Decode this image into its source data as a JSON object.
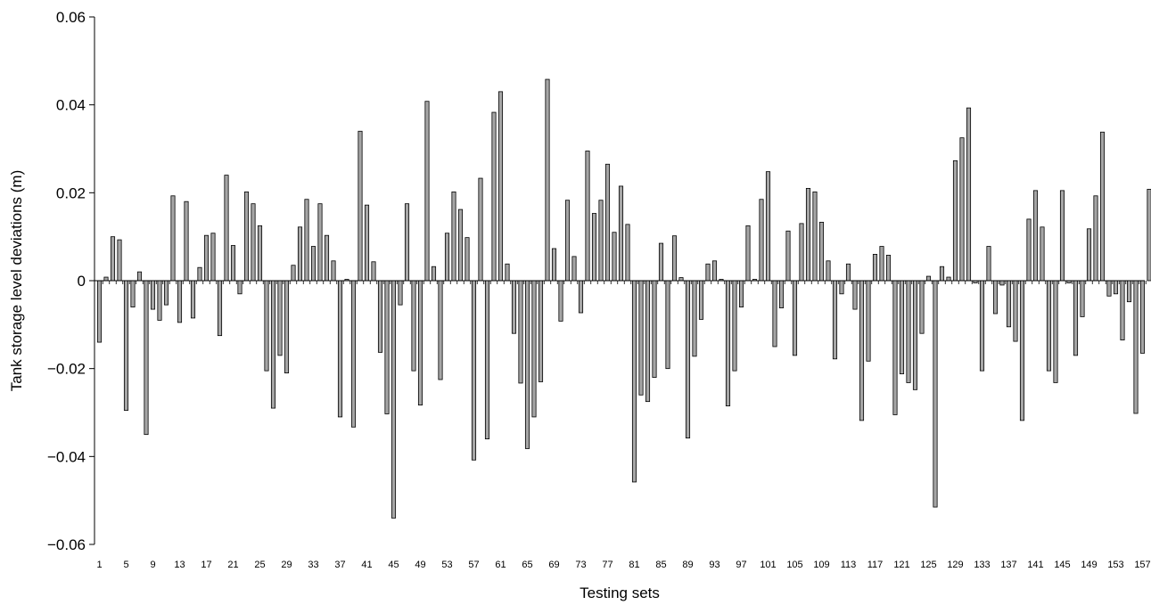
{
  "chart_data": {
    "type": "bar",
    "xlabel": "Testing sets",
    "ylabel": "Tank storage level deviations (m)",
    "ylim": [
      -0.06,
      0.06
    ],
    "y_ticks": [
      0.06,
      0.04,
      0.02,
      0,
      -0.02,
      -0.04,
      -0.06
    ],
    "y_tick_labels": [
      "0.06",
      "0.04",
      "0.02",
      "0",
      "−0.02",
      "−0.04",
      "−0.06"
    ],
    "x_tick_labels": [
      "1",
      "5",
      "9",
      "13",
      "17",
      "21",
      "25",
      "29",
      "33",
      "37",
      "41",
      "45",
      "49",
      "53",
      "57",
      "61",
      "65",
      "69",
      "73",
      "77",
      "81",
      "85",
      "89",
      "93",
      "97",
      "101",
      "105",
      "109",
      "113",
      "117",
      "121",
      "125",
      "129",
      "133",
      "137",
      "141",
      "145",
      "149",
      "153",
      "157"
    ],
    "x": [
      1,
      2,
      3,
      4,
      5,
      6,
      7,
      8,
      9,
      10,
      11,
      12,
      13,
      14,
      15,
      16,
      17,
      18,
      19,
      20,
      21,
      22,
      23,
      24,
      25,
      26,
      27,
      28,
      29,
      30,
      31,
      32,
      33,
      34,
      35,
      36,
      37,
      38,
      39,
      40,
      41,
      42,
      43,
      44,
      45,
      46,
      47,
      48,
      49,
      50,
      51,
      52,
      53,
      54,
      55,
      56,
      57,
      58,
      59,
      60,
      61,
      62,
      63,
      64,
      65,
      66,
      67,
      68,
      69,
      70,
      71,
      72,
      73,
      74,
      75,
      76,
      77,
      78,
      79,
      80,
      81,
      82,
      83,
      84,
      85,
      86,
      87,
      88,
      89,
      90,
      91,
      92,
      93,
      94,
      95,
      96,
      97,
      98,
      99,
      100,
      101,
      102,
      103,
      104,
      105,
      106,
      107,
      108,
      109,
      110,
      111,
      112,
      113,
      114,
      115,
      116,
      117,
      118,
      119,
      120,
      121,
      122,
      123,
      124,
      125,
      126,
      127,
      128,
      129,
      130,
      131,
      132,
      133,
      134,
      135,
      136,
      137,
      138,
      139,
      140,
      141,
      142,
      143,
      144,
      145,
      146,
      147,
      148,
      149,
      150,
      151,
      152,
      153,
      154,
      155,
      156,
      157,
      158
    ],
    "values": [
      -0.014,
      0.0008,
      0.01,
      0.0093,
      -0.0295,
      -0.006,
      0.002,
      -0.035,
      -0.0065,
      -0.009,
      -0.0055,
      0.0193,
      -0.0095,
      0.018,
      -0.0085,
      0.003,
      0.0103,
      0.0108,
      -0.0125,
      0.024,
      0.008,
      -0.003,
      0.0202,
      0.0175,
      0.0125,
      -0.0205,
      -0.029,
      -0.017,
      -0.021,
      0.0035,
      0.0122,
      0.0185,
      0.0078,
      0.0175,
      0.0103,
      0.0045,
      -0.031,
      0.0003,
      -0.0333,
      0.034,
      0.0172,
      0.0043,
      -0.0163,
      -0.0303,
      -0.054,
      -0.0055,
      0.0175,
      -0.0205,
      -0.0283,
      0.0408,
      0.0032,
      -0.0225,
      0.0108,
      0.0202,
      0.0162,
      0.0098,
      -0.0408,
      0.0233,
      -0.036,
      0.0383,
      0.043,
      0.0038,
      -0.012,
      -0.0233,
      -0.0382,
      -0.031,
      -0.023,
      0.0458,
      0.0073,
      -0.0092,
      0.0183,
      0.0055,
      -0.0073,
      0.0295,
      0.0153,
      0.0183,
      0.0265,
      0.011,
      0.0215,
      0.0128,
      -0.0458,
      -0.026,
      -0.0275,
      -0.022,
      0.0085,
      -0.02,
      0.0102,
      0.0007,
      -0.0358,
      -0.0172,
      -0.0088,
      0.0038,
      0.0045,
      0.0003,
      -0.0285,
      -0.0205,
      -0.006,
      0.0125,
      0.0003,
      0.0185,
      0.0248,
      -0.015,
      -0.0062,
      0.0113,
      -0.017,
      0.013,
      0.021,
      0.0202,
      0.0133,
      0.0045,
      -0.0178,
      -0.003,
      0.0038,
      -0.0065,
      -0.0318,
      -0.0183,
      0.006,
      0.0078,
      0.0058,
      -0.0305,
      -0.0212,
      -0.0232,
      -0.0248,
      -0.012,
      0.001,
      -0.0515,
      0.0032,
      0.0008,
      0.0273,
      0.0325,
      0.0393,
      -0.0005,
      -0.0205,
      0.0078,
      -0.0075,
      -0.001,
      -0.0105,
      -0.0138,
      -0.0318,
      0.014,
      0.0205,
      0.0122,
      -0.0205,
      -0.0232,
      0.0205,
      -0.0005,
      -0.017,
      -0.0082,
      0.0118,
      0.0193,
      0.0338,
      -0.0035,
      -0.003,
      -0.0135,
      -0.0048,
      -0.0302,
      -0.0165,
      0.0208
    ],
    "bar_color": "#a6a6a6",
    "edge_color": "#000000",
    "grid": false,
    "legend": "none"
  }
}
